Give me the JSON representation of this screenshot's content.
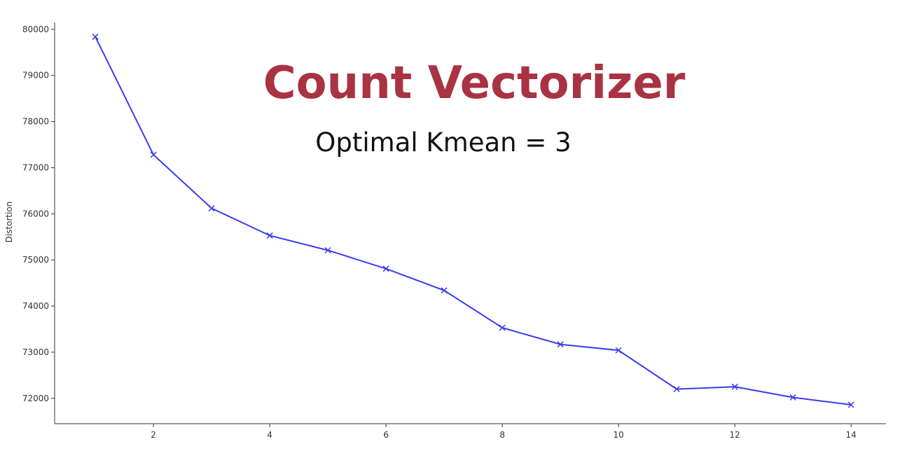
{
  "chart_data": {
    "type": "line",
    "title": "Count Vectorizer",
    "subtitle": "Optimal Kmean = 3",
    "xlabel": "",
    "ylabel": "Distortion",
    "xlim": [
      0.3,
      14.6
    ],
    "ylim": [
      71450,
      80150
    ],
    "x_ticks": [
      2,
      4,
      6,
      8,
      10,
      12,
      14
    ],
    "y_ticks": [
      72000,
      73000,
      74000,
      75000,
      76000,
      77000,
      78000,
      79000,
      80000
    ],
    "grid": false,
    "legend": "none",
    "marker": "x",
    "line_color": "#3a3af0",
    "title_color": "#a93342",
    "series": [
      {
        "x": [
          1,
          2,
          3,
          4,
          5,
          6,
          7,
          8,
          9,
          10,
          11,
          12,
          13,
          14
        ],
        "values": [
          79840,
          77280,
          76120,
          75530,
          75210,
          74810,
          74340,
          73530,
          73170,
          73040,
          72200,
          72250,
          72020,
          71860
        ]
      }
    ]
  }
}
